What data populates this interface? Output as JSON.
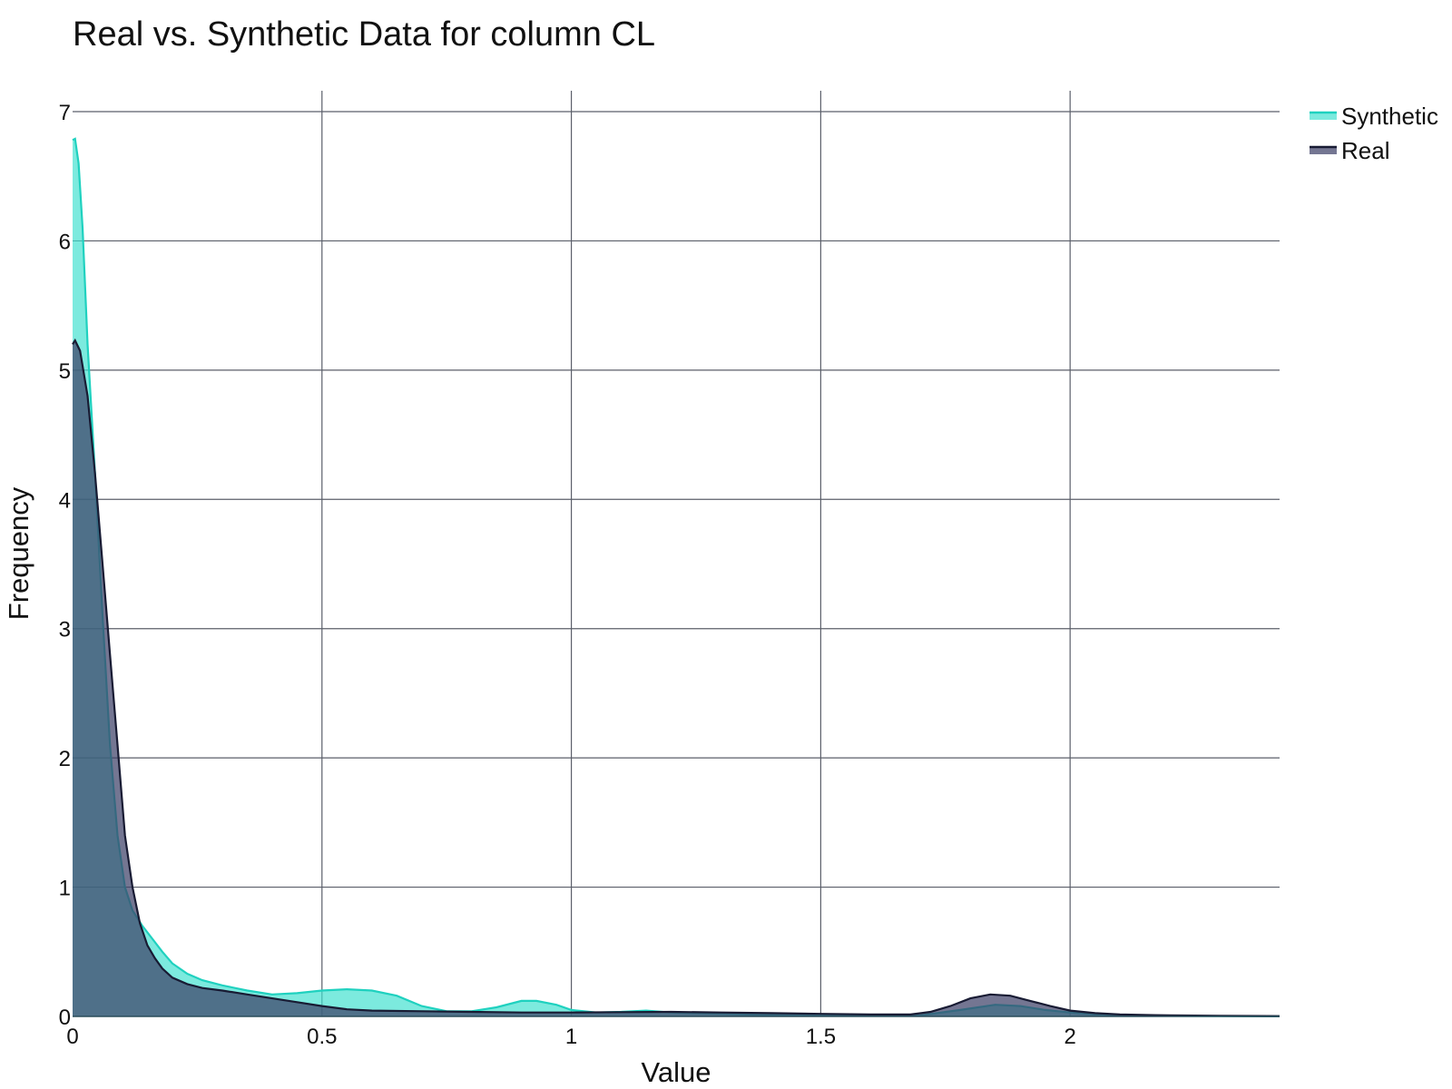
{
  "chart_data": {
    "type": "area",
    "title": "Real vs. Synthetic Data for column CL",
    "xlabel": "Value",
    "ylabel": "Frequency",
    "xlim": [
      0,
      2.42
    ],
    "ylim": [
      0,
      7
    ],
    "x_ticks": [
      0,
      0.5,
      1,
      1.5,
      2
    ],
    "x_tick_labels": [
      "0",
      "0.5",
      "1",
      "1.5",
      "2"
    ],
    "y_ticks": [
      0,
      1,
      2,
      3,
      4,
      5,
      6,
      7
    ],
    "y_tick_labels": [
      "0",
      "1",
      "2",
      "3",
      "4",
      "5",
      "6",
      "7"
    ],
    "grid": true,
    "legend_position": "top-right",
    "series": [
      {
        "name": "Synthetic",
        "line_color": "#1fd1bf",
        "fill_color": "#3ee0cf",
        "fill_opacity": 0.68,
        "points": [
          [
            0,
            6.78
          ],
          [
            0.005,
            6.79
          ],
          [
            0.012,
            6.6
          ],
          [
            0.02,
            6.1
          ],
          [
            0.03,
            5.2
          ],
          [
            0.045,
            4.2
          ],
          [
            0.06,
            3.1
          ],
          [
            0.075,
            2.1
          ],
          [
            0.09,
            1.4
          ],
          [
            0.105,
            1.0
          ],
          [
            0.12,
            0.82
          ],
          [
            0.14,
            0.7
          ],
          [
            0.16,
            0.6
          ],
          [
            0.18,
            0.5
          ],
          [
            0.2,
            0.41
          ],
          [
            0.23,
            0.33
          ],
          [
            0.26,
            0.28
          ],
          [
            0.3,
            0.24
          ],
          [
            0.35,
            0.2
          ],
          [
            0.4,
            0.17
          ],
          [
            0.45,
            0.18
          ],
          [
            0.5,
            0.2
          ],
          [
            0.55,
            0.21
          ],
          [
            0.6,
            0.2
          ],
          [
            0.65,
            0.16
          ],
          [
            0.7,
            0.08
          ],
          [
            0.75,
            0.04
          ],
          [
            0.8,
            0.04
          ],
          [
            0.85,
            0.07
          ],
          [
            0.9,
            0.12
          ],
          [
            0.93,
            0.12
          ],
          [
            0.97,
            0.09
          ],
          [
            1.0,
            0.05
          ],
          [
            1.05,
            0.03
          ],
          [
            1.1,
            0.035
          ],
          [
            1.15,
            0.045
          ],
          [
            1.2,
            0.03
          ],
          [
            1.3,
            0.02
          ],
          [
            1.4,
            0.01
          ],
          [
            1.5,
            0.008
          ],
          [
            1.6,
            0.006
          ],
          [
            1.7,
            0.008
          ],
          [
            1.78,
            0.05
          ],
          [
            1.85,
            0.09
          ],
          [
            1.9,
            0.08
          ],
          [
            1.95,
            0.05
          ],
          [
            2.0,
            0.03
          ],
          [
            2.05,
            0.015
          ],
          [
            2.1,
            0.008
          ],
          [
            2.2,
            0.004
          ],
          [
            2.3,
            0.002
          ],
          [
            2.42,
            0.001
          ]
        ]
      },
      {
        "name": "Real",
        "line_color": "#181b33",
        "fill_color": "#3f4168",
        "fill_opacity": 0.72,
        "points": [
          [
            0,
            5.2
          ],
          [
            0.005,
            5.23
          ],
          [
            0.015,
            5.15
          ],
          [
            0.03,
            4.8
          ],
          [
            0.045,
            4.2
          ],
          [
            0.06,
            3.5
          ],
          [
            0.075,
            2.8
          ],
          [
            0.09,
            2.1
          ],
          [
            0.105,
            1.4
          ],
          [
            0.12,
            1.0
          ],
          [
            0.135,
            0.72
          ],
          [
            0.15,
            0.55
          ],
          [
            0.165,
            0.45
          ],
          [
            0.18,
            0.37
          ],
          [
            0.2,
            0.3
          ],
          [
            0.23,
            0.25
          ],
          [
            0.26,
            0.22
          ],
          [
            0.3,
            0.2
          ],
          [
            0.35,
            0.17
          ],
          [
            0.4,
            0.14
          ],
          [
            0.45,
            0.11
          ],
          [
            0.5,
            0.08
          ],
          [
            0.55,
            0.055
          ],
          [
            0.6,
            0.045
          ],
          [
            0.7,
            0.04
          ],
          [
            0.8,
            0.035
          ],
          [
            0.9,
            0.03
          ],
          [
            1.0,
            0.03
          ],
          [
            1.1,
            0.033
          ],
          [
            1.2,
            0.035
          ],
          [
            1.3,
            0.03
          ],
          [
            1.4,
            0.025
          ],
          [
            1.5,
            0.02
          ],
          [
            1.6,
            0.015
          ],
          [
            1.68,
            0.015
          ],
          [
            1.72,
            0.035
          ],
          [
            1.76,
            0.08
          ],
          [
            1.8,
            0.14
          ],
          [
            1.84,
            0.17
          ],
          [
            1.88,
            0.16
          ],
          [
            1.92,
            0.12
          ],
          [
            1.96,
            0.08
          ],
          [
            2.0,
            0.045
          ],
          [
            2.05,
            0.025
          ],
          [
            2.1,
            0.015
          ],
          [
            2.2,
            0.008
          ],
          [
            2.3,
            0.004
          ],
          [
            2.42,
            0.002
          ]
        ]
      }
    ]
  }
}
